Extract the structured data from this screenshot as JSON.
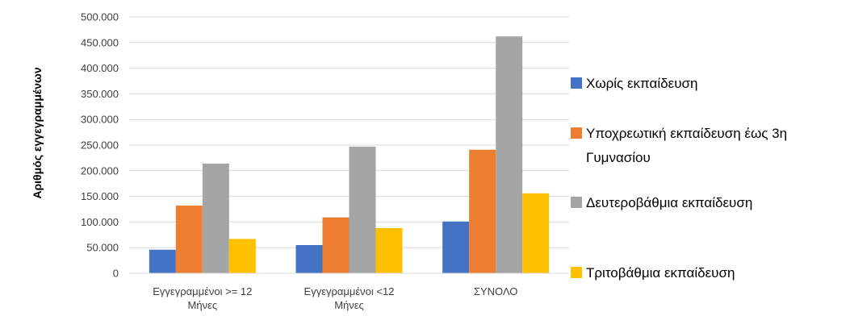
{
  "chart_data": {
    "type": "bar",
    "title": "",
    "xlabel": "",
    "ylabel": "Αριθμός εγγεγραμμένων",
    "ylim": [
      0,
      500000
    ],
    "yticks": [
      0,
      50000,
      100000,
      150000,
      200000,
      250000,
      300000,
      350000,
      400000,
      450000,
      500000
    ],
    "ytick_labels": [
      "0",
      "50.000",
      "100.000",
      "150.000",
      "200.000",
      "250.000",
      "300.000",
      "350.000",
      "400.000",
      "450.000",
      "500.000"
    ],
    "grid": true,
    "legend_position": "right",
    "categories": [
      [
        "Εγγεγραμμένοι  >= 12",
        "Μήνες"
      ],
      [
        "Εγγεγραμμένοι  <12",
        "Μήνες"
      ],
      [
        "ΣΥΝΟΛΟ"
      ]
    ],
    "series": [
      {
        "name": "Χωρίς εκπαίδευση",
        "color": "#4472c4",
        "values": [
          46000,
          55000,
          101000
        ]
      },
      {
        "name": "Υποχρεωτική εκπαίδευση έως 3η Γυμνασίου",
        "legend_lines": [
          "Υποχρεωτική εκπαίδευση έως 3η",
          "Γυμνασίου"
        ],
        "color": "#ed7d31",
        "values": [
          132000,
          109000,
          241000
        ]
      },
      {
        "name": "Δευτεροβάθμια εκπαίδευση",
        "color": "#a5a5a5",
        "values": [
          214000,
          247000,
          462000
        ]
      },
      {
        "name": "Τριτοβάθμια εκπαίδευση",
        "color": "#ffc000",
        "values": [
          67000,
          88000,
          156000
        ]
      }
    ]
  }
}
